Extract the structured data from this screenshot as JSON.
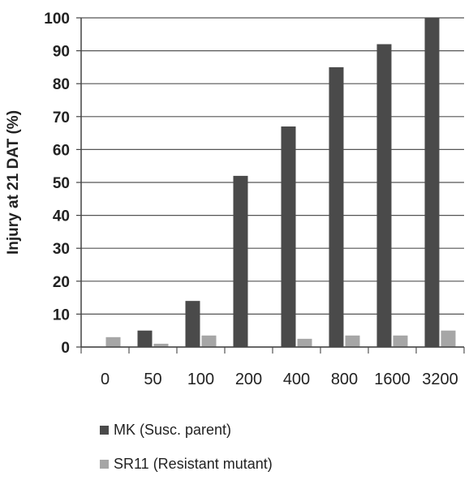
{
  "chart_data": {
    "type": "bar",
    "categories": [
      "0",
      "50",
      "100",
      "200",
      "400",
      "800",
      "1600",
      "3200"
    ],
    "series": [
      {
        "name": "MK (Susc. parent)",
        "color": "#4a4a4a",
        "values": [
          0,
          5,
          14,
          52,
          67,
          85,
          92,
          100
        ]
      },
      {
        "name": "SR11 (Resistant mutant)",
        "color": "#a6a6a6",
        "values": [
          3,
          1,
          3.5,
          0,
          2.5,
          3.5,
          3.5,
          5
        ]
      }
    ],
    "title": "",
    "xlabel": "",
    "ylabel": "Injury at 21 DAT (%)",
    "ylim": [
      0,
      100
    ],
    "yticks": [
      "0",
      "10",
      "20",
      "30",
      "40",
      "50",
      "60",
      "70",
      "80",
      "90",
      "100"
    ],
    "grid": true,
    "legend_position": "bottom-left"
  }
}
